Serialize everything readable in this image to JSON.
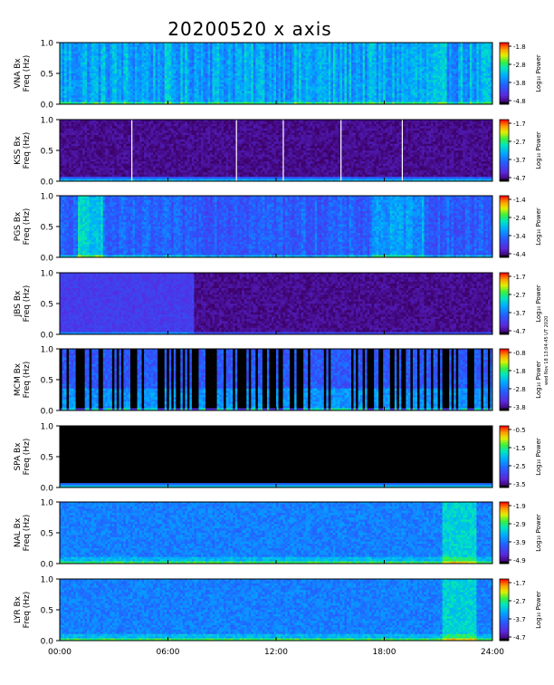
{
  "title": "20200520  x axis",
  "side_note": "wed Nov 18 13:04:45 UT 2020",
  "chart_data": {
    "type": "heatmap",
    "x_ticks": [
      "00:00",
      "06:00",
      "12:00",
      "18:00",
      "24:00"
    ],
    "x_range": [
      0,
      24
    ],
    "y_ticks": [
      "0.0",
      "0.5",
      "1.0"
    ],
    "y_range": [
      0,
      1.0
    ],
    "panels": [
      {
        "station": "VNA Bx",
        "ylabel": "Freq (Hz)",
        "colorbar_label": "Log₁₀ Power",
        "colorbar_ticks": [
          "-1.8",
          "-2.8",
          "-3.8",
          "-4.8"
        ],
        "style": "striped-bright"
      },
      {
        "station": "KSS Bx",
        "ylabel": "Freq (Hz)",
        "colorbar_label": "Log₁₀ Power",
        "colorbar_ticks": [
          "-1.7",
          "-2.7",
          "-3.7",
          "-4.7"
        ],
        "style": "dark-gaps",
        "gaps_hours": [
          4.0,
          9.8,
          12.4,
          15.6,
          19.0
        ]
      },
      {
        "station": "PGS Bx",
        "ylabel": "Freq (Hz)",
        "colorbar_label": "Log₁₀ Power",
        "colorbar_ticks": [
          "-1.4",
          "-2.4",
          "-3.4",
          "-4.4"
        ],
        "style": "mid-blue"
      },
      {
        "station": "JBS Bx",
        "ylabel": "Freq (Hz)",
        "colorbar_label": "Log₁₀ Power",
        "colorbar_ticks": [
          "-1.7",
          "-2.7",
          "-3.7",
          "-4.7"
        ],
        "style": "half-dark"
      },
      {
        "station": "MCM Bx",
        "ylabel": "Freq (Hz)",
        "colorbar_label": "Log₁₀ Power",
        "colorbar_ticks": [
          "-0.8",
          "-1.8",
          "-2.8",
          "-3.8"
        ],
        "style": "black-stripes"
      },
      {
        "station": "SPA Bx",
        "ylabel": "Freq (Hz)",
        "colorbar_label": "Log₁₀ Power",
        "colorbar_ticks": [
          "-0.5",
          "-1.5",
          "-2.5",
          "-3.5"
        ],
        "style": "black"
      },
      {
        "station": "NAL Bx",
        "ylabel": "Freq (Hz)",
        "colorbar_label": "Log₁₀ Power",
        "colorbar_ticks": [
          "-1.9",
          "-2.9",
          "-3.9",
          "-4.9"
        ],
        "style": "bright"
      },
      {
        "station": "LYR Bx",
        "ylabel": "Freq (Hz)",
        "colorbar_label": "Log₁₀ Power",
        "colorbar_ticks": [
          "-1.7",
          "-2.7",
          "-3.7",
          "-4.7"
        ],
        "style": "bright"
      }
    ]
  }
}
